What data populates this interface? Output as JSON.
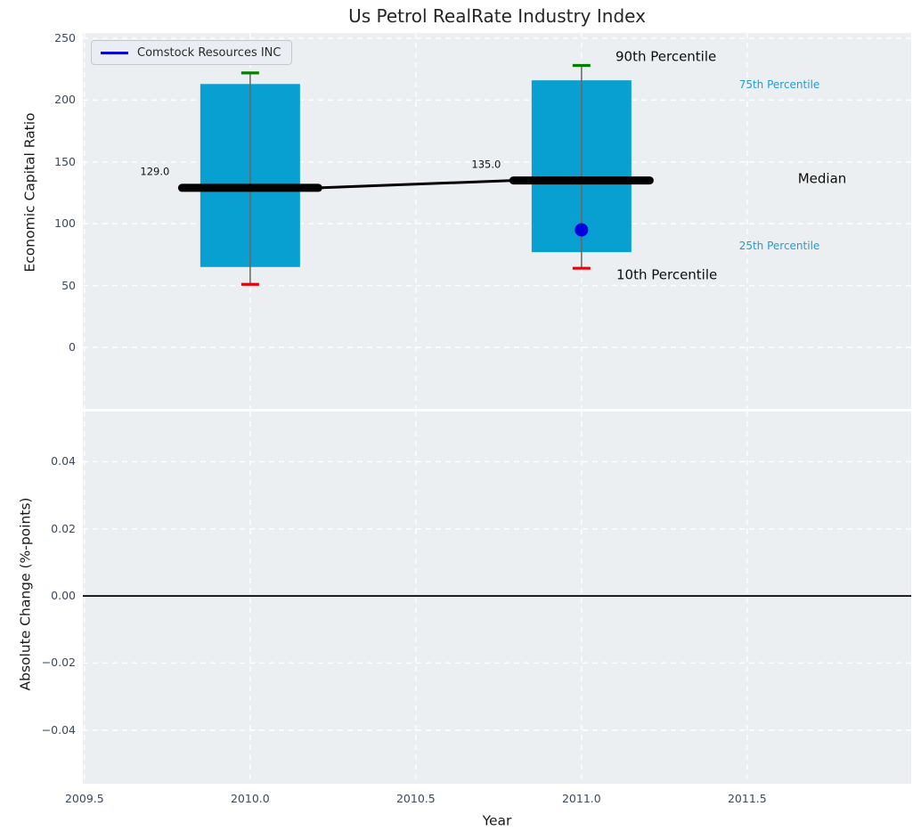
{
  "title": "Us Petrol RealRate Industry Index",
  "legend": {
    "label": "Comstock Resources INC"
  },
  "percentile_labels": {
    "p90": "90th Percentile",
    "p75": "75th Percentile",
    "median": "Median",
    "p25": "25th Percentile",
    "p10": "10th Percentile"
  },
  "colors": {
    "panel_bg": "#eceff1",
    "grid": "#ffffff",
    "bar": "#089fd1",
    "whisker": "#666666",
    "cap_top": "#008000",
    "cap_bottom": "#e8000b",
    "median_line": "#000000",
    "company_point": "#0000dd",
    "legend_line": "#0000e0",
    "zero_line": "#000000",
    "tick_label": "#3b4a5c",
    "percentile_label": "#1d9fd2",
    "title_color": "#262626"
  },
  "chart_data": [
    {
      "type": "box-whisker-bar",
      "title": "Us Petrol RealRate Industry Index",
      "ylabel": "Economic Capital Ratio",
      "xlim": [
        2009.495,
        2011.995
      ],
      "ylim": [
        -49.7,
        254.3
      ],
      "yticks": [
        250,
        200,
        150,
        100,
        50,
        0
      ],
      "yticklabels": [
        "250",
        "200",
        "150",
        "100",
        "50",
        "0"
      ],
      "grid": true,
      "legend_entries": [
        "Comstock Resources INC"
      ],
      "legend_position": "upper left",
      "boxes": [
        {
          "x": 2010.0,
          "p90": 222,
          "p75": 213,
          "median": 129.0,
          "p25": 65,
          "p10": 51,
          "median_annotation": "129.0"
        },
        {
          "x": 2011.0,
          "p90": 228,
          "p75": 216,
          "median": 135.0,
          "p25": 77,
          "p10": 64,
          "median_annotation": "135.0"
        }
      ],
      "company_points": [
        {
          "name": "Comstock Resources INC",
          "x": 2011.0,
          "y": 95
        }
      ]
    },
    {
      "type": "line",
      "ylabel": "Absolute Change (%-points)",
      "xlabel": "Year",
      "xlim": [
        2009.495,
        2011.995
      ],
      "ylim": [
        -0.056,
        0.055
      ],
      "yticks": [
        0.04,
        0.02,
        0.0,
        -0.02,
        -0.04
      ],
      "yticklabels": [
        "0.04",
        "0.02",
        "0.00",
        "−0.02",
        "−0.04"
      ],
      "xticks": [
        2009.5,
        2010.0,
        2010.5,
        2011.0,
        2011.5
      ],
      "xticklabels": [
        "2009.5",
        "2010.0",
        "2010.5",
        "2011.0",
        "2011.5"
      ],
      "grid": true,
      "zero_line": 0.0,
      "series": []
    }
  ]
}
